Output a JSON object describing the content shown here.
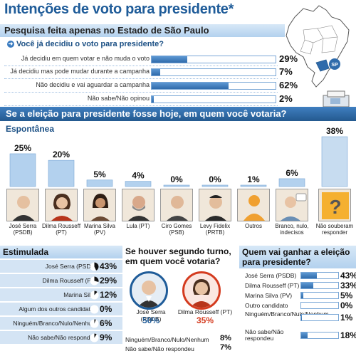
{
  "title": "Intenções de voto para presidente*",
  "map": {
    "state_label": "SP"
  },
  "section1": {
    "header": "Pesquisa feita apenas no Estado de São Paulo",
    "question": "Você já decidiu o voto para presidente?"
  },
  "section2": {
    "header": "Se a eleição para presidente fosse hoje, em quem você votaria?"
  },
  "colors": {
    "blue_dark": "#24598f",
    "bar_blue": "#3a7bc0",
    "bar_light": "#b3d1ee",
    "serra": "#1f5c99",
    "dilma": "#d43b1f"
  },
  "chart_data": [
    {
      "type": "bar",
      "orientation": "horizontal",
      "categories": [
        "Já decidiu em quem votar e não muda o voto",
        "Já decidiu mas pode mudar durante a campanha",
        "Não decidiu e vai aguardar a campanha",
        "Não sabe/Não opinou"
      ],
      "values": [
        29,
        7,
        62,
        2
      ],
      "value_labels": [
        "29%",
        "7%",
        "62%",
        "2%"
      ],
      "xlim": [
        0,
        100
      ]
    },
    {
      "type": "bar",
      "title": "Espontânea",
      "categories": [
        "José Serra (PSDB)",
        "Dilma Rousseff (PT)",
        "Marina Silva (PV)",
        "Lula (PT)",
        "Ciro Gomes (PSB)",
        "Levy Fidelix (PRTB)",
        "Outros",
        "Branco, nulo, indecisos",
        "Não souberam responder"
      ],
      "values": [
        25,
        20,
        5,
        4,
        0,
        0,
        1,
        6,
        38
      ],
      "value_labels": [
        "25%",
        "20%",
        "5%",
        "4%",
        "0%",
        "0%",
        "1%",
        "6%",
        "38%"
      ],
      "ylim": [
        0,
        38
      ]
    },
    {
      "type": "pie",
      "title": "Estimulada",
      "categories": [
        "José Serra (PSDB)",
        "Dilma Rousseff (PT)",
        "Marina Silva",
        "Algum dos outros candidatos",
        "Ninguém/Branco/Nulo/Nenhum",
        "Não sabe/Não respondeu"
      ],
      "values": [
        43,
        29,
        12,
        0,
        6,
        9
      ],
      "value_labels": [
        "43%",
        "29%",
        "12%",
        "0%",
        "6%",
        "9%"
      ]
    },
    {
      "type": "table",
      "title": "Se houver segundo turno, em quem você votaria?",
      "categories": [
        "José Serra (PSDB)",
        "Dilma Rousseff (PT)",
        "Ninguém/Branco/Nulo/Nenhum",
        "Não sabe/Não respondeu"
      ],
      "values": [
        50,
        35,
        8,
        7
      ],
      "value_labels": [
        "50%",
        "35%",
        "8%",
        "7%"
      ]
    },
    {
      "type": "bar",
      "orientation": "horizontal",
      "title": "Quem vai ganhar a eleição para presidente?",
      "categories": [
        "José Serra (PSDB)",
        "Dilma Rousseff (PT)",
        "Marina Silva (PV)",
        "Outro candidato",
        "Ninguém/Branco/Nulo/Nenhum",
        "Não sabe/Não respondeu"
      ],
      "values": [
        43,
        33,
        5,
        0,
        1,
        18
      ],
      "value_labels": [
        "43%",
        "33%",
        "5%",
        "0%",
        "1%",
        "18%"
      ],
      "xlim": [
        0,
        100
      ]
    }
  ]
}
